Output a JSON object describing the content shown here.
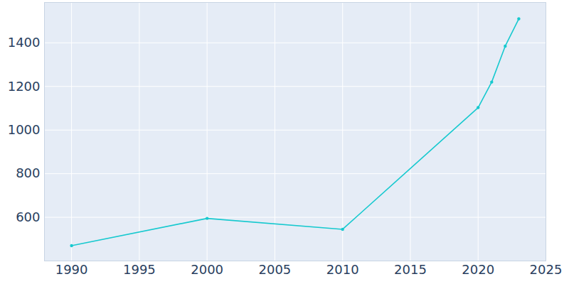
{
  "chart_data": {
    "type": "line",
    "x": [
      1990,
      2000,
      2010,
      2020,
      2021,
      2022,
      2023
    ],
    "values": [
      470,
      595,
      545,
      1103,
      1220,
      1385,
      1510
    ],
    "color": "#17c9cf",
    "marker": "circle",
    "xlim": [
      1988,
      2025
    ],
    "xticks": [
      1990,
      1995,
      2000,
      2005,
      2010,
      2015,
      2020,
      2025
    ],
    "ylim": [
      400,
      1585
    ],
    "yticks": [
      600,
      800,
      1000,
      1200,
      1400
    ],
    "grid": true
  }
}
